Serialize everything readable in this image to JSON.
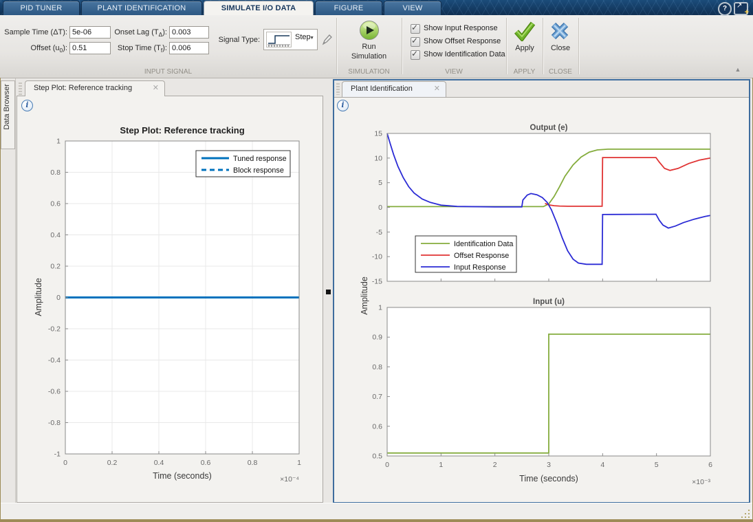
{
  "icons": {
    "check": "✓",
    "close_x": "✕",
    "caret_down": "▼",
    "collapse": "▲",
    "help": "?",
    "arrow_ne": "↗",
    "plus": "+",
    "info": "i"
  },
  "tabbar": {
    "tabs": [
      {
        "label": "PID TUNER",
        "active": false
      },
      {
        "label": "PLANT IDENTIFICATION",
        "active": false
      },
      {
        "label": "SIMULATE I/O DATA",
        "active": true
      },
      {
        "label": "FIGURE",
        "active": false
      },
      {
        "label": "VIEW",
        "active": false
      }
    ]
  },
  "ribbon": {
    "fields": {
      "sample_time": {
        "pre": "Sample Time (ΔT",
        "sub": "",
        "post": "):",
        "value": "5e-06"
      },
      "offset": {
        "pre": "Offset (u",
        "sub": "0",
        "post": "):",
        "value": "0.51"
      },
      "onset_lag": {
        "pre": "Onset Lag (T",
        "sub": "Δ",
        "post": "):",
        "value": "0.003"
      },
      "stop_time": {
        "pre": "Stop Time (T",
        "sub": "f",
        "post": "):",
        "value": "0.006"
      }
    },
    "signal_type": {
      "label": "Signal Type:",
      "value": "Step"
    },
    "run": {
      "line1": "Run",
      "line2": "Simulation"
    },
    "view_checkboxes": [
      {
        "label": "Show Input Response",
        "checked": true
      },
      {
        "label": "Show Offset Response",
        "checked": true
      },
      {
        "label": "Show Identification Data",
        "checked": true
      }
    ],
    "apply_label": "Apply",
    "close_label": "Close",
    "sections": {
      "input_signal": "INPUT SIGNAL",
      "simulation": "SIMULATION",
      "view": "VIEW",
      "apply": "APPLY",
      "close": "CLOSE"
    }
  },
  "data_browser": {
    "label": "Data Browser"
  },
  "left_panel": {
    "tab_label": "Step Plot: Reference tracking"
  },
  "right_panel": {
    "tab_label": "Plant Identification"
  },
  "chart_data": [
    {
      "id": "step_plot",
      "type": "line",
      "title": "Step Plot: Reference tracking",
      "xlabel": "Time (seconds)",
      "ylabel": "Amplitude",
      "x_multiplier": "×10⁻⁴",
      "xlim": [
        0,
        1
      ],
      "ylim": [
        -1,
        1
      ],
      "xticks": [
        0,
        0.2,
        0.4,
        0.6,
        0.8,
        1
      ],
      "xtick_labels": [
        "0",
        "0.2",
        "0.4",
        "0.6",
        "0.8",
        "1"
      ],
      "yticks": [
        -1,
        -0.8,
        -0.6,
        -0.4,
        -0.2,
        0,
        0.2,
        0.4,
        0.6,
        0.8,
        1
      ],
      "ytick_labels": [
        "-1",
        "-0.8",
        "-0.6",
        "-0.4",
        "-0.2",
        "0",
        "0.2",
        "0.4",
        "0.6",
        "0.8",
        "1"
      ],
      "grid": true,
      "legend_position": "upper right",
      "legend": [
        {
          "label": "Tuned response",
          "color": "#0072BD",
          "style": "solid",
          "width": 3
        },
        {
          "label": "Block response",
          "color": "#0072BD",
          "style": "dashed",
          "width": 3
        }
      ],
      "series": [
        {
          "name": "Block response",
          "color": "#0072BD",
          "style": "dashed",
          "width": 2.5,
          "x": [
            0,
            1
          ],
          "y": [
            0,
            0
          ]
        },
        {
          "name": "Tuned response",
          "color": "#0072BD",
          "style": "solid",
          "width": 3,
          "x": [
            0,
            1
          ],
          "y": [
            0,
            0
          ]
        }
      ]
    },
    {
      "id": "output_e",
      "type": "line",
      "title": "Output (e)",
      "xlabel": "",
      "ylabel": "Amplitude",
      "x_multiplier": "",
      "xlim": [
        0,
        6
      ],
      "ylim": [
        -15,
        15
      ],
      "xticks": [
        0,
        1,
        2,
        3,
        4,
        5,
        6
      ],
      "xtick_labels": [],
      "yticks": [
        -15,
        -10,
        -5,
        0,
        5,
        10,
        15
      ],
      "ytick_labels": [
        "-15",
        "-10",
        "-5",
        "0",
        "5",
        "10",
        "15"
      ],
      "grid": false,
      "legend_position": "center left",
      "legend": [
        {
          "label": "Identification Data",
          "color": "#84AC3C",
          "style": "solid",
          "width": 1.8
        },
        {
          "label": "Offset Response",
          "color": "#E03232",
          "style": "solid",
          "width": 1.8
        },
        {
          "label": "Input Response",
          "color": "#2B2BD5",
          "style": "solid",
          "width": 1.8
        }
      ],
      "series": [
        {
          "name": "Identification Data",
          "color": "#84AC3C",
          "style": "solid",
          "width": 1.8,
          "x": [
            0,
            2.9,
            3.0,
            3.1,
            3.2,
            3.3,
            3.45,
            3.6,
            3.75,
            3.9,
            4.1,
            6.0
          ],
          "y": [
            0.15,
            0.15,
            0.7,
            2.2,
            4.2,
            6.3,
            8.6,
            10.2,
            11.2,
            11.65,
            11.8,
            11.8
          ]
        },
        {
          "name": "Offset Response",
          "color": "#E03232",
          "style": "solid",
          "width": 1.8,
          "x": [
            2.93,
            3.0,
            3.1,
            3.2,
            3.35,
            3.6,
            3.99,
            4.0,
            4.99,
            5.05,
            5.15,
            5.25,
            5.4,
            5.6,
            5.8,
            6.0
          ],
          "y": [
            0.8,
            0.5,
            0.33,
            0.27,
            0.23,
            0.22,
            0.22,
            10.1,
            10.1,
            9.2,
            7.9,
            7.5,
            7.9,
            8.9,
            9.6,
            10.0
          ]
        },
        {
          "name": "Input Response",
          "color": "#2B2BD5",
          "style": "solid",
          "width": 1.8,
          "x": [
            0,
            0.06,
            0.12,
            0.2,
            0.3,
            0.4,
            0.5,
            0.65,
            0.8,
            1.0,
            1.3,
            2.0,
            2.5,
            2.52,
            2.6,
            2.67,
            2.78,
            2.88,
            2.97,
            3.05,
            3.15,
            3.25,
            3.35,
            3.45,
            3.55,
            3.7,
            3.99,
            4.0,
            4.99,
            5.05,
            5.12,
            5.22,
            5.35,
            5.5,
            5.7,
            5.9,
            6.0
          ],
          "y": [
            15,
            12.8,
            10.7,
            8.3,
            6.0,
            4.2,
            2.9,
            1.7,
            1.0,
            0.45,
            0.18,
            0.1,
            0.1,
            1.5,
            2.5,
            2.8,
            2.55,
            2.0,
            1.0,
            -0.5,
            -3.2,
            -6.2,
            -8.8,
            -10.5,
            -11.3,
            -11.55,
            -11.55,
            -1.45,
            -1.4,
            -2.6,
            -3.6,
            -4.2,
            -3.8,
            -3.1,
            -2.4,
            -1.85,
            -1.65
          ]
        }
      ]
    },
    {
      "id": "input_u",
      "type": "line",
      "title": "Input (u)",
      "xlabel": "Time (seconds)",
      "ylabel": "Amplitude",
      "x_multiplier": "×10⁻³",
      "xlim": [
        0,
        6
      ],
      "ylim": [
        0.5,
        1
      ],
      "xticks": [
        0,
        1,
        2,
        3,
        4,
        5,
        6
      ],
      "xtick_labels": [
        "0",
        "1",
        "2",
        "3",
        "4",
        "5",
        "6"
      ],
      "yticks": [
        0.5,
        0.6,
        0.7,
        0.8,
        0.9,
        1
      ],
      "ytick_labels": [
        "0.5",
        "0.6",
        "0.7",
        "0.8",
        "0.9",
        "1"
      ],
      "grid": false,
      "legend_position": "none",
      "legend": [],
      "series": [
        {
          "name": "Input step",
          "color": "#84AC3C",
          "style": "solid",
          "width": 1.8,
          "x": [
            0,
            3,
            3,
            6
          ],
          "y": [
            0.51,
            0.51,
            0.91,
            0.91
          ]
        }
      ]
    }
  ]
}
